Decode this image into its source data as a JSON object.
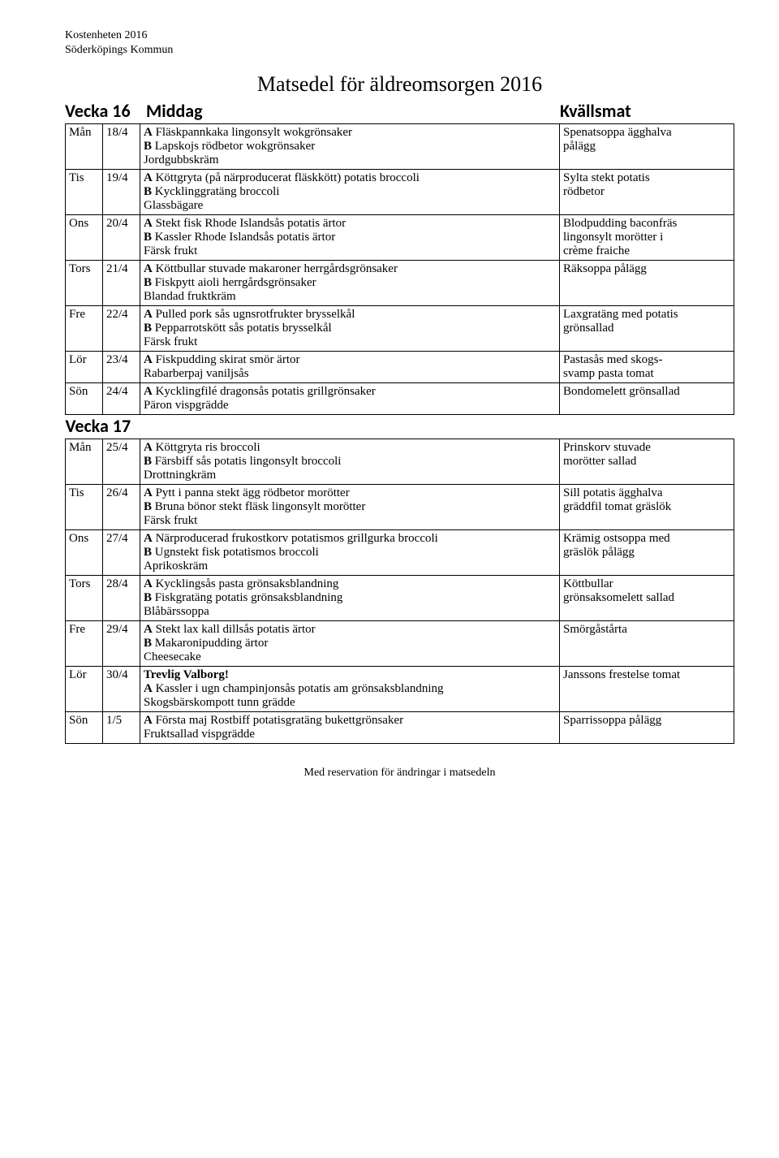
{
  "header": {
    "line1": "Kostenheten 2016",
    "line2": "Söderköpings Kommun"
  },
  "title": "Matsedel för äldreomsorgen 2016",
  "columns": {
    "week": "Vecka 16",
    "middag": "Middag",
    "kvall": "Kvällsmat"
  },
  "weeks": [
    {
      "label": "Vecka 16",
      "rows": [
        {
          "day": "Mån",
          "date": "18/4",
          "middag": [
            {
              "b": "A",
              "t": " Fläskpannkaka lingonsylt wokgrönsaker"
            },
            {
              "b": "B",
              "t": " Lapskojs rödbetor wokgrönsaker"
            },
            {
              "b": "",
              "t": "Jordgubbskräm"
            }
          ],
          "kvall": [
            "Spenatsoppa ägghalva",
            "pålägg"
          ]
        },
        {
          "day": "Tis",
          "date": "19/4",
          "middag": [
            {
              "b": "A",
              "t": " Köttgryta (på närproducerat fläskkött) potatis broccoli"
            },
            {
              "b": "B",
              "t": " Kycklinggratäng broccoli"
            },
            {
              "b": "",
              "t": "Glassbägare"
            }
          ],
          "kvall": [
            "Sylta stekt potatis",
            "rödbetor"
          ]
        },
        {
          "day": "Ons",
          "date": "20/4",
          "middag": [
            {
              "b": "A",
              "t": " Stekt fisk Rhode Islandsås potatis ärtor"
            },
            {
              "b": "B",
              "t": " Kassler Rhode Islandsås potatis ärtor"
            },
            {
              "b": "",
              "t": "Färsk frukt"
            }
          ],
          "kvall": [
            "Blodpudding baconfräs",
            "lingonsylt morötter i",
            "crème fraiche"
          ]
        },
        {
          "day": "Tors",
          "date": "21/4",
          "middag": [
            {
              "b": "A",
              "t": " Köttbullar stuvade makaroner herrgårdsgrönsaker"
            },
            {
              "b": "B",
              "t": " Fiskpytt aioli herrgårdsgrönsaker"
            },
            {
              "b": "",
              "t": "Blandad fruktkräm"
            }
          ],
          "kvall": [
            "Räksoppa pålägg"
          ]
        },
        {
          "day": "Fre",
          "date": "22/4",
          "middag": [
            {
              "b": "A",
              "t": " Pulled pork sås ugnsrotfrukter brysselkål"
            },
            {
              "b": "B",
              "t": " Pepparrotskött sås potatis brysselkål"
            },
            {
              "b": "",
              "t": "Färsk frukt"
            }
          ],
          "kvall": [
            "Laxgratäng med potatis",
            "grönsallad"
          ]
        },
        {
          "day": "Lör",
          "date": "23/4",
          "middag": [
            {
              "b": "A",
              "t": " Fiskpudding skirat smör ärtor"
            },
            {
              "b": "",
              "t": "Rabarberpaj vaniljsås"
            }
          ],
          "kvall": [
            "Pastasås med skogs-",
            "svamp pasta tomat"
          ]
        },
        {
          "day": "Sön",
          "date": "24/4",
          "middag": [
            {
              "b": "A",
              "t": " Kycklingfilé dragonsås potatis grillgrönsaker"
            },
            {
              "b": "",
              "t": "Päron vispgrädde"
            }
          ],
          "kvall": [
            "Bondomelett grönsallad"
          ]
        }
      ]
    },
    {
      "label": "Vecka 17",
      "rows": [
        {
          "day": "Mån",
          "date": "25/4",
          "middag": [
            {
              "b": "A",
              "t": " Köttgryta ris broccoli"
            },
            {
              "b": "B",
              "t": " Färsbiff sås potatis lingonsylt broccoli"
            },
            {
              "b": "",
              "t": "Drottningkräm"
            }
          ],
          "kvall": [
            "Prinskorv stuvade",
            "morötter sallad"
          ]
        },
        {
          "day": "Tis",
          "date": "26/4",
          "middag": [
            {
              "b": "A",
              "t": " Pytt i panna stekt ägg rödbetor morötter"
            },
            {
              "b": "B",
              "t": " Bruna bönor stekt fläsk lingonsylt morötter"
            },
            {
              "b": "",
              "t": "Färsk frukt"
            }
          ],
          "kvall": [
            "Sill potatis ägghalva",
            "gräddfil tomat gräslök"
          ]
        },
        {
          "day": "Ons",
          "date": "27/4",
          "middag": [
            {
              "b": "A",
              "t": " Närproducerad frukostkorv potatismos grillgurka broccoli"
            },
            {
              "b": "B",
              "t": " Ugnstekt fisk potatismos broccoli"
            },
            {
              "b": "",
              "t": "Aprikoskräm"
            }
          ],
          "kvall": [
            "Krämig ostsoppa med",
            "gräslök pålägg"
          ]
        },
        {
          "day": "Tors",
          "date": "28/4",
          "middag": [
            {
              "b": "A",
              "t": " Kycklingsås pasta grönsaksblandning"
            },
            {
              "b": "B",
              "t": " Fiskgratäng potatis grönsaksblandning"
            },
            {
              "b": "",
              "t": "Blåbärssoppa"
            }
          ],
          "kvall": [
            "Köttbullar",
            "grönsaksomelett sallad"
          ]
        },
        {
          "day": "Fre",
          "date": "29/4",
          "middag": [
            {
              "b": "A",
              "t": " Stekt lax kall dillsås potatis ärtor"
            },
            {
              "b": "B",
              "t": " Makaronipudding ärtor"
            },
            {
              "b": "",
              "t": "Cheesecake"
            }
          ],
          "kvall": [
            "Smörgåstårta"
          ]
        },
        {
          "day": "Lör",
          "date": "30/4",
          "middag": [
            {
              "b": "Trevlig Valborg!",
              "t": ""
            },
            {
              "b": "A",
              "t": " Kassler i ugn champinjonsås potatis am grönsaksblandning"
            },
            {
              "b": "",
              "t": "Skogsbärskompott tunn grädde"
            }
          ],
          "kvall": [
            "Janssons frestelse tomat"
          ]
        },
        {
          "day": "Sön",
          "date": "1/5",
          "middag": [
            {
              "b": "A",
              "t": " Första maj Rostbiff potatisgratäng bukettgrönsaker"
            },
            {
              "b": "",
              "t": "Fruktsallad vispgrädde"
            }
          ],
          "kvall": [
            "Sparrissoppa pålägg"
          ]
        }
      ]
    }
  ],
  "footer": "Med reservation för ändringar i matsedeln"
}
